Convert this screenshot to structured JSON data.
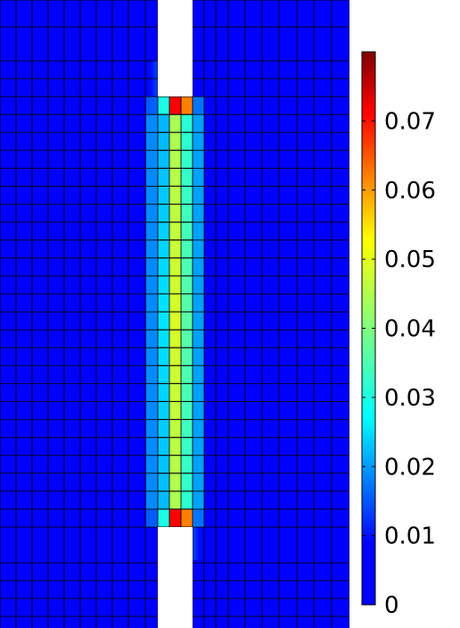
{
  "chart_data": {
    "type": "heatmap",
    "title": "",
    "xlabel": "",
    "ylabel": "",
    "colormap": "jet",
    "colorbar": {
      "min": 0,
      "max": 0.08,
      "ticks": [
        0,
        0.01,
        0.02,
        0.03,
        0.04,
        0.05,
        0.06,
        0.07
      ],
      "tick_labels": [
        "0",
        "0.01",
        "0.02",
        "0.03",
        "0.04",
        "0.05",
        "0.06",
        "0.07"
      ],
      "placement": "right"
    },
    "mesh": "quadrilateral grid with black element edges; vertical gap (no material) through the middle, bridged by a narrow strip",
    "strip_profile": {
      "description": "values across the strip, left edge to right edge (3 columns)",
      "columns": [
        "left",
        "center",
        "right"
      ],
      "end_rows": [
        0.032,
        0.07,
        0.06
      ],
      "interior_rows": [
        0.028,
        0.047,
        0.037
      ]
    },
    "background_value": 0
  }
}
